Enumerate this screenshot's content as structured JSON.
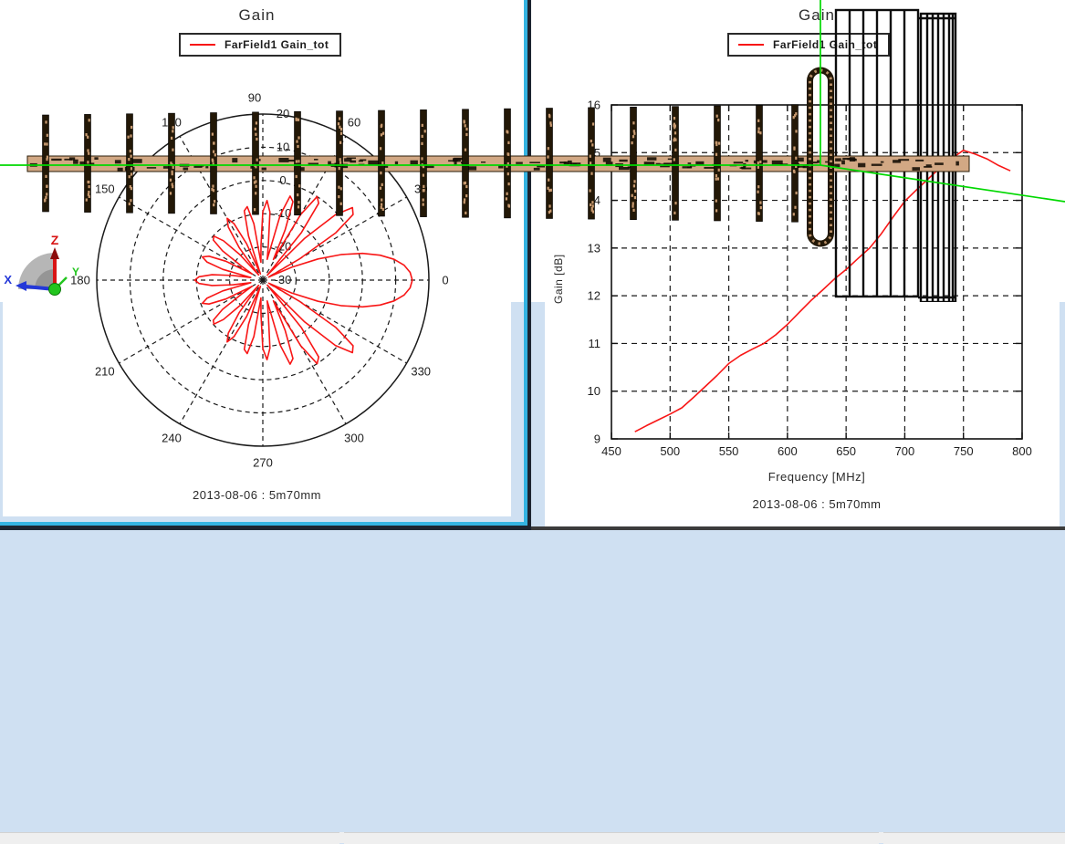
{
  "app": {
    "background": "#cfe0f2"
  },
  "left_chart": {
    "title": "Gain",
    "legend": "FarField1 Gain_tot",
    "caption": "2013-08-06 : 5m70mm",
    "series_color": "#f81616"
  },
  "right_chart": {
    "title": "Gain",
    "legend": "FarField1 Gain_tot",
    "caption": "2013-08-06 : 5m70mm",
    "xlabel": "Frequency [MHz]",
    "ylabel": "Gain [dB]",
    "series_color": "#f81616"
  },
  "chart_data": [
    {
      "type": "polar",
      "title": "Gain",
      "legend": [
        "FarField1 Gain_tot"
      ],
      "units": "dB",
      "angle_ticks_deg": [
        0,
        30,
        60,
        90,
        120,
        150,
        180,
        210,
        240,
        270,
        300,
        330
      ],
      "radial_ticks_db": [
        20,
        10,
        0,
        -10,
        -20,
        -30
      ],
      "r_range_db": [
        -30,
        20
      ],
      "symmetry": "mirror-about-0-180-axis",
      "points_deg_db": [
        [
          0,
          15
        ],
        [
          3,
          14.4
        ],
        [
          6,
          12.8
        ],
        [
          9,
          10
        ],
        [
          12,
          6.1
        ],
        [
          15,
          1.1
        ],
        [
          18,
          -5
        ],
        [
          21,
          -12.2
        ],
        [
          24,
          -20.5
        ],
        [
          27,
          -28
        ],
        [
          30,
          -17.4
        ],
        [
          33,
          -3.8
        ],
        [
          36,
          3.6
        ],
        [
          39,
          4.7
        ],
        [
          42,
          -0.6
        ],
        [
          45,
          -12.2
        ],
        [
          48,
          -28
        ],
        [
          51,
          -11.5
        ],
        [
          54,
          -1.4
        ],
        [
          57,
          0
        ],
        [
          60,
          -7.2
        ],
        [
          63,
          -23
        ],
        [
          66,
          -13.5
        ],
        [
          69,
          -4.7
        ],
        [
          72,
          -3.4
        ],
        [
          75,
          -9.7
        ],
        [
          78,
          -23.6
        ],
        [
          81,
          -19.5
        ],
        [
          84,
          -9.4
        ],
        [
          87,
          -6
        ],
        [
          90,
          -9.4
        ],
        [
          93,
          -19.5
        ],
        [
          96,
          -24.6
        ],
        [
          99,
          -12.8
        ],
        [
          102,
          -7.4
        ],
        [
          105,
          -8.4
        ],
        [
          108,
          -16
        ],
        [
          111,
          -28
        ],
        [
          114,
          -18
        ],
        [
          117,
          -10.9
        ],
        [
          120,
          -8.5
        ],
        [
          123,
          -10.9
        ],
        [
          126,
          -18
        ],
        [
          129,
          -28
        ],
        [
          132,
          -19.8
        ],
        [
          135,
          -13.2
        ],
        [
          138,
          -10.2
        ],
        [
          141,
          -10.8
        ],
        [
          144,
          -15
        ],
        [
          147,
          -22.8
        ],
        [
          150,
          -26.3
        ],
        [
          153,
          -17.5
        ],
        [
          156,
          -12.3
        ],
        [
          159,
          -10.5
        ],
        [
          162,
          -12.3
        ],
        [
          165,
          -17.5
        ],
        [
          168,
          -26.3
        ],
        [
          171,
          -21
        ],
        [
          174,
          -14.6
        ],
        [
          177,
          -10.8
        ],
        [
          180,
          -9.5
        ]
      ]
    },
    {
      "type": "line",
      "title": "Gain",
      "xlabel": "Frequency [MHz]",
      "ylabel": "Gain [dB]",
      "xlim": [
        450,
        800
      ],
      "ylim": [
        9,
        16
      ],
      "xticks": [
        450,
        500,
        550,
        600,
        650,
        700,
        750,
        800
      ],
      "yticks": [
        9,
        10,
        11,
        12,
        13,
        14,
        15,
        16
      ],
      "grid": "dashed",
      "legend_position": "top-center",
      "series": [
        {
          "name": "FarField1 Gain_tot",
          "color": "#f81616",
          "x": [
            470,
            480,
            490,
            500,
            510,
            520,
            530,
            540,
            550,
            560,
            570,
            580,
            590,
            600,
            610,
            620,
            630,
            640,
            650,
            660,
            670,
            680,
            690,
            700,
            710,
            720,
            730,
            740,
            750,
            760,
            770,
            780,
            790
          ],
          "y": [
            9.15,
            9.28,
            9.4,
            9.52,
            9.65,
            9.87,
            10.1,
            10.33,
            10.58,
            10.75,
            10.88,
            11.0,
            11.18,
            11.4,
            11.65,
            11.9,
            12.12,
            12.35,
            12.55,
            12.78,
            13.0,
            13.3,
            13.65,
            13.98,
            14.22,
            14.45,
            14.68,
            14.88,
            15.05,
            14.97,
            14.87,
            14.73,
            14.62
          ]
        }
      ]
    }
  ],
  "viewport3d": {
    "axis_labels": {
      "x": "X",
      "y": "Y",
      "z": "Z"
    },
    "axis_colors": {
      "x": "#2438d8",
      "y": "#22c51e",
      "z": "#d81414"
    },
    "model": {
      "type": "yagi-antenna-side-view",
      "director_count": 19,
      "boom_color": "#d2a884",
      "element_color": "#231807",
      "speckle_color": "#c89a70",
      "beam_axis_color": "#00d800",
      "reflector_color": "#0c0c0c"
    }
  },
  "status_bar": {
    "text": ""
  }
}
